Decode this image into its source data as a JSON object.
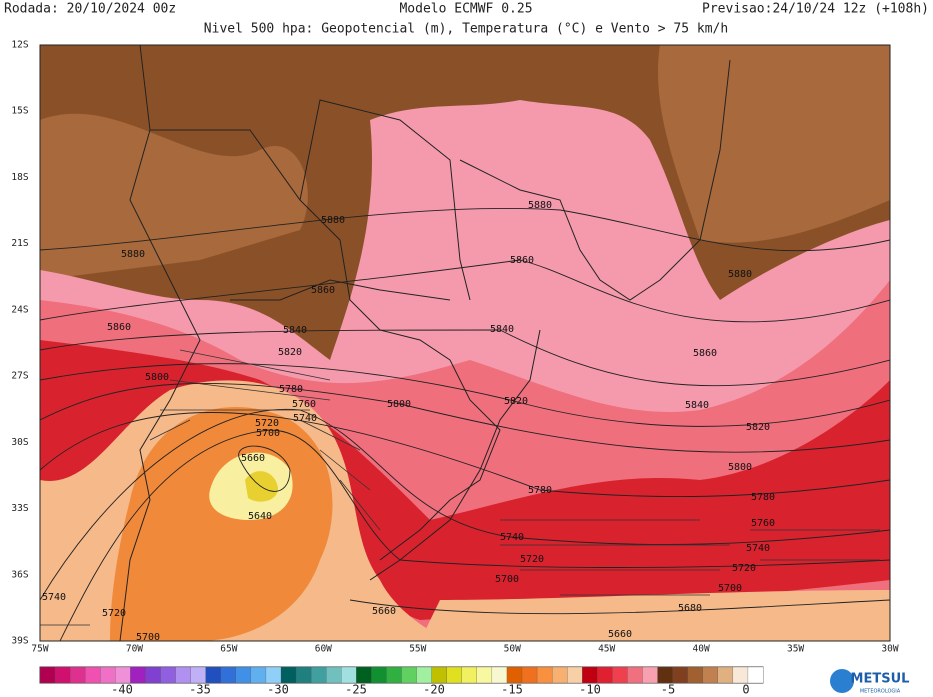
{
  "header": {
    "left": "Rodada: 20/10/2024 00z",
    "center": "Modelo ECMWF 0.25",
    "right": "Previsao:24/10/24 12z (+108h)",
    "subtitle": "Nivel 500 hpa: Geopotencial (m), Temperatura (°C) e Vento > 75 km/h"
  },
  "map": {
    "lat_labels": [
      "12S",
      "15S",
      "18S",
      "21S",
      "24S",
      "27S",
      "30S",
      "33S",
      "36S",
      "39S"
    ],
    "lon_labels": [
      "75W",
      "70W",
      "65W",
      "60W",
      "55W",
      "50W",
      "45W",
      "40W",
      "35W",
      "30W"
    ],
    "contour_labels": [
      "5880",
      "5880",
      "5880",
      "5880",
      "5860",
      "5860",
      "5860",
      "5860",
      "5840",
      "5840",
      "5840",
      "5820",
      "5820",
      "5820",
      "5800",
      "5800",
      "5800",
      "5780",
      "5780",
      "5780",
      "5760",
      "5760",
      "5740",
      "5740",
      "5740",
      "5740",
      "5720",
      "5720",
      "5720",
      "5720",
      "5700",
      "5700",
      "5700",
      "5700",
      "5680",
      "5660",
      "5660",
      "5660",
      "5640"
    ]
  },
  "colorbar": {
    "labels": [
      "-40",
      "-35",
      "-30",
      "-25",
      "-20",
      "-15",
      "-10",
      "-5",
      "0"
    ],
    "colors": [
      "#b0004f",
      "#d0106f",
      "#e0308f",
      "#f050b0",
      "#f070c8",
      "#f090d8",
      "#a020c0",
      "#8040d0",
      "#9060e0",
      "#b090f0",
      "#c0b0f8",
      "#2050c0",
      "#3070d8",
      "#4090e8",
      "#60b0f0",
      "#90d0f8",
      "#006060",
      "#208080",
      "#40a0a0",
      "#70c0c0",
      "#a0e0e0",
      "#006020",
      "#109030",
      "#30b040",
      "#60d060",
      "#a0f0a0",
      "#c0c000",
      "#e0e020",
      "#f0f060",
      "#f8f8a0",
      "#f8f8d0",
      "#e06000",
      "#f07020",
      "#f89040",
      "#f8b070",
      "#f8d0a8",
      "#c00010",
      "#e02030",
      "#f04050",
      "#f07080",
      "#f8a0b0",
      "#603010",
      "#804020",
      "#a06030",
      "#c08050",
      "#e0b080",
      "#f8e8d8",
      "#ffffff"
    ]
  },
  "logo": {
    "name": "METSUL",
    "tagline": "METEOROLOGIA"
  }
}
